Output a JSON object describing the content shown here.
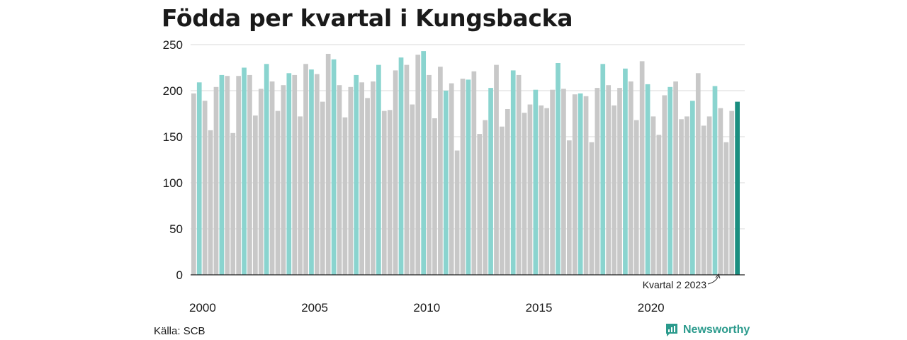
{
  "title": "Födda per kvartal i Kungsbacka",
  "source": "Källa: SCB",
  "brand": {
    "name": "Newsworthy",
    "icon": "newsworthy-logo-icon"
  },
  "colors": {
    "highlight": "#8ad4cf",
    "other": "#c8c8c8",
    "current": "#1a8e80",
    "grid": "#d9d9d9",
    "axis": "#222222"
  },
  "chart_data": {
    "type": "bar",
    "title": "Födda per kvartal i Kungsbacka",
    "xlabel": "",
    "ylabel": "",
    "ylim": [
      0,
      250
    ],
    "y_ticks": [
      0,
      50,
      100,
      150,
      200,
      250
    ],
    "x_tick_labels": [
      "2000",
      "2005",
      "2010",
      "2015",
      "2020"
    ],
    "annotation": "Kvartal 2 2023",
    "highlight_quarter": "Q2",
    "grid": true,
    "series": [
      {
        "start": "2000 Q1",
        "end": "2023 Q2",
        "values": [
          197,
          209,
          189,
          157,
          204,
          217,
          216,
          154,
          216,
          225,
          217,
          173,
          202,
          229,
          210,
          178,
          206,
          219,
          217,
          172,
          229,
          223,
          218,
          188,
          240,
          234,
          206,
          171,
          204,
          217,
          209,
          192,
          210,
          228,
          178,
          179,
          222,
          236,
          228,
          185,
          239,
          243,
          217,
          170,
          226,
          200,
          208,
          135,
          213,
          212,
          221,
          153,
          168,
          203,
          228,
          161,
          180,
          222,
          217,
          176,
          185,
          201,
          184,
          181,
          201,
          230,
          202,
          146,
          196,
          197,
          194,
          144,
          203,
          229,
          206,
          184,
          203,
          224,
          210,
          168,
          232,
          207,
          172,
          152,
          195,
          204,
          210,
          169,
          172,
          189,
          219,
          162,
          172,
          205,
          181,
          144,
          178,
          188
        ]
      }
    ]
  }
}
